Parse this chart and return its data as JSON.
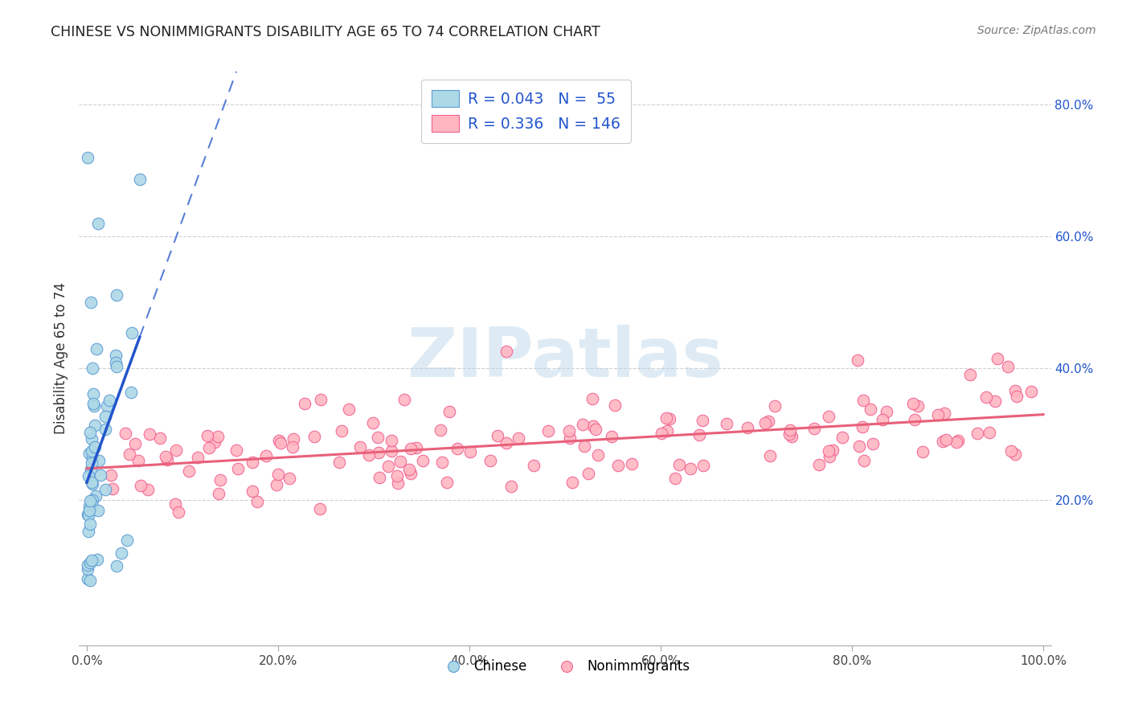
{
  "title": "CHINESE VS NONIMMIGRANTS DISABILITY AGE 65 TO 74 CORRELATION CHART",
  "source": "Source: ZipAtlas.com",
  "ylabel": "Disability Age 65 to 74",
  "xticklabels": [
    "0.0%",
    "",
    "20.0%",
    "",
    "40.0%",
    "",
    "60.0%",
    "",
    "80.0%",
    "",
    "100.0%"
  ],
  "yticklabels": [
    "20.0%",
    "40.0%",
    "60.0%",
    "80.0%"
  ],
  "chinese_color": "#ADD8E6",
  "chinese_edge_color": "#5B9BD5",
  "nonimm_color": "#FFB6C1",
  "nonimm_edge_color": "#F06090",
  "trend_chinese_color": "#2255CC",
  "trend_nonimm_color": "#E8607A",
  "legend_text_color": "#2255CC",
  "R_chinese": 0.043,
  "N_chinese": 55,
  "R_nonimm": 0.336,
  "N_nonimm": 146,
  "watermark": "ZIPatlas",
  "background_color": "#ffffff",
  "grid_color": "#D0D0D0",
  "axis_color": "#AAAAAA"
}
